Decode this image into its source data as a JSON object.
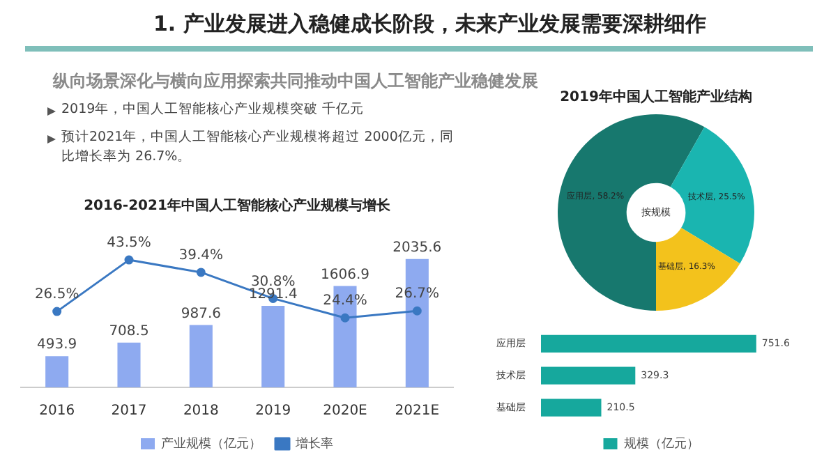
{
  "chart_data": [
    {
      "type": "other",
      "title": "1. 产业发展进入稳健成长阶段，未来产业发展需要深耕细作",
      "subtitle": "纵向场景深化与横向应用探索共同推动中国人工智能产业稳健发展",
      "annotations": [
        "2019年，中国人工智能核心产业规模突破 千亿元",
        "预计2021年，中国人工智能核心产业规模将超过 2000亿元，同比增长率为 26.7%。"
      ]
    },
    {
      "type": "bar",
      "title": "2016-2021年中国人工智能核心产业规模与增长",
      "categories": [
        "2016",
        "2017",
        "2018",
        "2019",
        "2020E",
        "2021E"
      ],
      "tick_labels": "x",
      "data_labels": true,
      "legend": "bottom",
      "marker": "circle",
      "series": [
        {
          "name": "产业规模（亿元）",
          "type": "bar",
          "color": "#8eaaf0",
          "values": [
            493.9,
            708.5,
            987.6,
            1291.4,
            1606.9,
            2035.6
          ]
        },
        {
          "name": "增长率",
          "type": "line",
          "axis": "y2",
          "color": "#3a78c2",
          "values": [
            26.5,
            43.5,
            39.4,
            30.8,
            24.4,
            26.7
          ],
          "value_labels": [
            "26.5%",
            "43.5%",
            "39.4%",
            "30.8%",
            "24.4%",
            "26.7%"
          ]
        }
      ]
    },
    {
      "type": "donut",
      "title": "2019年中国人工智能产业结构",
      "categories": [
        "应用层",
        "技术层",
        "基础层"
      ],
      "values": [
        58.2,
        25.5,
        16.3
      ],
      "colors": [
        "#17786e",
        "#1ab5b0",
        "#f3c21c"
      ],
      "value_labels": [
        "58.2%",
        "25.5%",
        "16.3%"
      ],
      "annotations": [
        "按规模"
      ]
    },
    {
      "type": "bar",
      "orientation": "horizontal",
      "categories": [
        "应用层",
        "技术层",
        "基础层"
      ],
      "tick_labels": "y",
      "data_labels": true,
      "legend": "bottom",
      "series": [
        {
          "name": "规模（亿元）",
          "color": "#16a89d",
          "values": [
            751.6,
            329.3,
            210.5
          ]
        }
      ]
    }
  ]
}
